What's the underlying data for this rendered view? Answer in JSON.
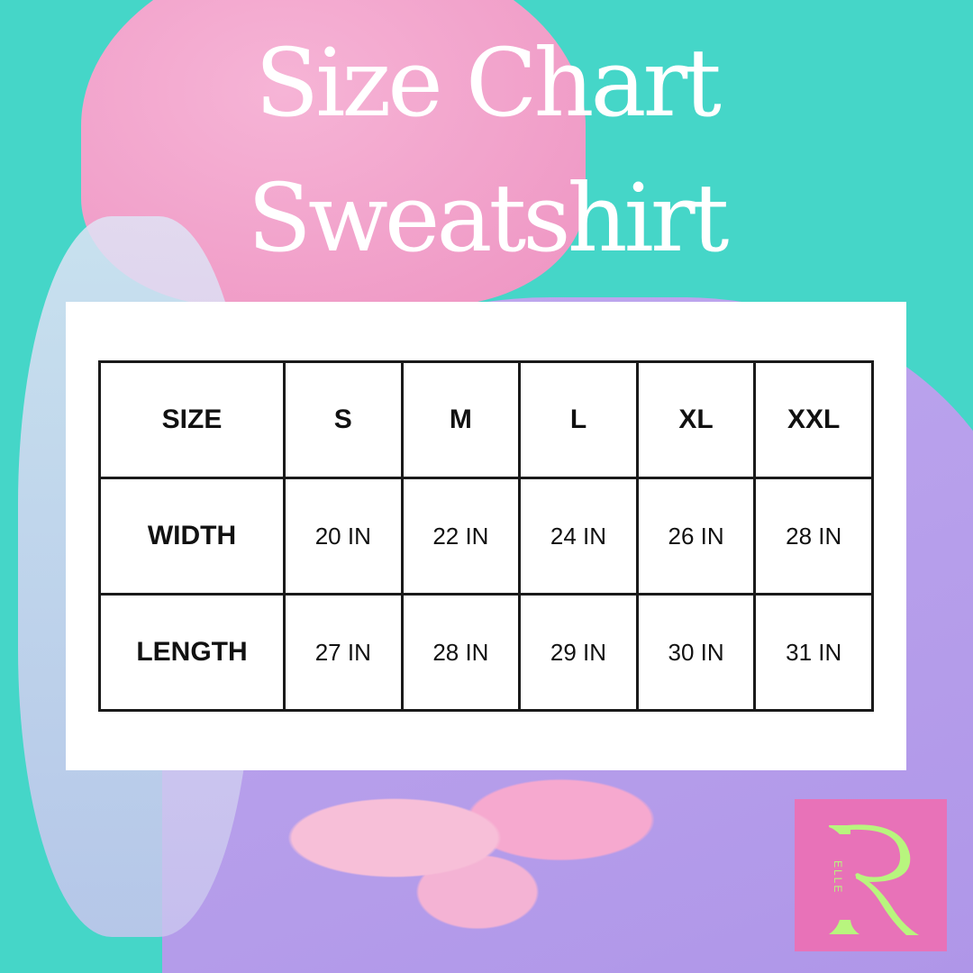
{
  "title_line1": "Size Chart",
  "title_line2": "Sweatshirt",
  "table": {
    "header": [
      "SIZE",
      "S",
      "M",
      "L",
      "XL",
      "XXL"
    ],
    "rows": [
      [
        "WIDTH",
        "20 IN",
        "22 IN",
        "24 IN",
        "26 IN",
        "28 IN"
      ],
      [
        "LENGTH",
        "27 IN",
        "28 IN",
        "29 IN",
        "30 IN",
        "31 IN"
      ]
    ]
  },
  "logo": {
    "letter": "R",
    "text": "ELLE",
    "bg_color": "#e872b8",
    "fg_color": "#b8f57e"
  },
  "colors": {
    "background": "#45d6c8",
    "panel": "#ffffff"
  }
}
